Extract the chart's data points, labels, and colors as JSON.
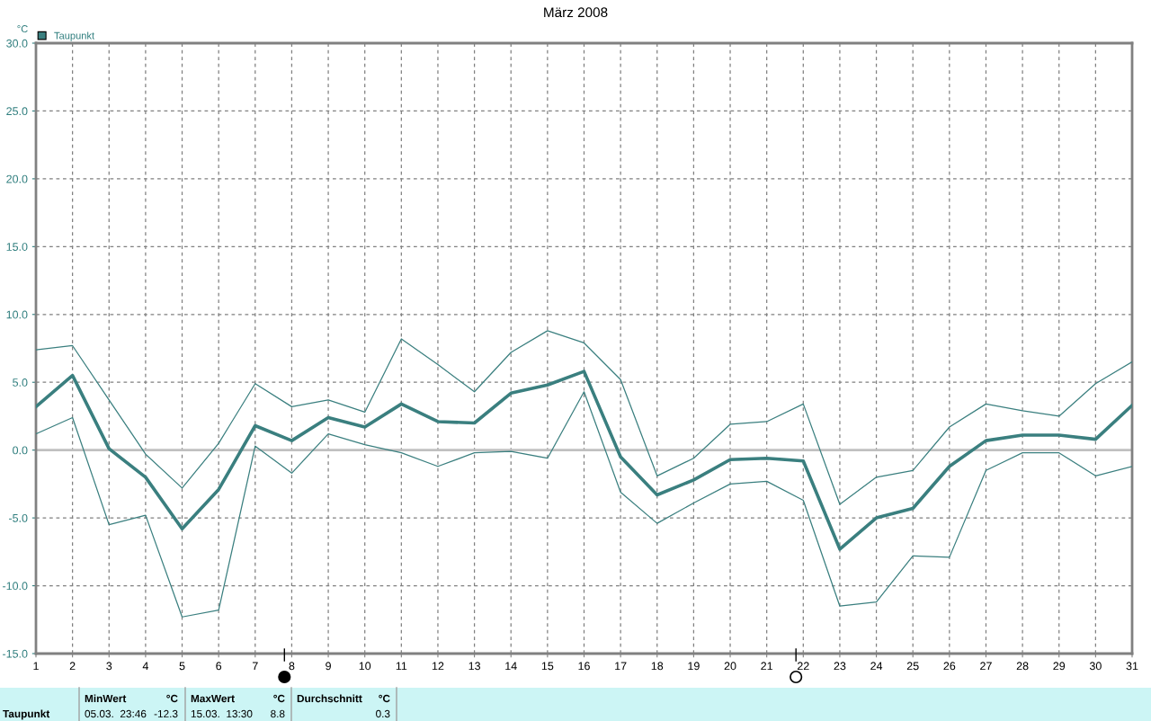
{
  "chart_data": {
    "type": "line",
    "title": "März 2008",
    "ylabel": "°C",
    "x": [
      1,
      2,
      3,
      4,
      5,
      6,
      7,
      8,
      9,
      10,
      11,
      12,
      13,
      14,
      15,
      16,
      17,
      18,
      19,
      20,
      21,
      22,
      23,
      24,
      25,
      26,
      27,
      28,
      29,
      30,
      31
    ],
    "series": [
      {
        "name": "Taupunkt",
        "color": "#3a7f7f",
        "values": [
          3.2,
          5.5,
          0.1,
          -2.0,
          -5.8,
          -2.9,
          1.8,
          0.7,
          2.4,
          1.7,
          3.4,
          2.1,
          2.0,
          4.2,
          4.8,
          5.8,
          -0.5,
          -3.3,
          -2.2,
          -0.7,
          -0.6,
          -0.8,
          -7.3,
          -5.0,
          -4.3,
          -1.2,
          0.7,
          1.1,
          1.1,
          0.8,
          3.3
        ]
      },
      {
        "color": "#3a7f7f",
        "values": [
          7.4,
          7.7,
          3.7,
          -0.3,
          -2.8,
          0.5,
          4.9,
          3.2,
          3.7,
          2.8,
          8.2,
          6.3,
          4.3,
          7.2,
          8.8,
          7.9,
          5.2,
          -1.9,
          -0.6,
          1.9,
          2.1,
          3.4,
          -4.0,
          -2.0,
          -1.5,
          1.7,
          3.4,
          2.9,
          2.5,
          4.9,
          6.5
        ]
      },
      {
        "color": "#3a7f7f",
        "values": [
          1.2,
          2.4,
          -5.5,
          -4.8,
          -12.3,
          -11.8,
          0.3,
          -1.7,
          1.2,
          0.4,
          -0.2,
          -1.2,
          -0.2,
          -0.1,
          -0.6,
          4.3,
          -3.1,
          -5.4,
          -3.9,
          -2.5,
          -2.3,
          -3.7,
          -11.5,
          -11.2,
          -7.8,
          -7.9,
          -1.5,
          -0.2,
          -0.2,
          -1.9,
          -1.2
        ]
      }
    ],
    "xlim": [
      1,
      31
    ],
    "xticks": [
      1,
      2,
      3,
      4,
      5,
      6,
      7,
      8,
      9,
      10,
      11,
      12,
      13,
      14,
      15,
      16,
      17,
      18,
      19,
      20,
      21,
      22,
      23,
      24,
      25,
      26,
      27,
      28,
      29,
      30,
      31
    ],
    "ylim": [
      -15,
      30
    ],
    "yticks": [
      {
        "value": -15,
        "label": "-15.0"
      },
      {
        "value": -10,
        "label": "-10.0"
      },
      {
        "value": -5,
        "label": "-5.0"
      },
      {
        "value": 0,
        "label": "0.0"
      },
      {
        "value": 5,
        "label": "5.0"
      },
      {
        "value": 10,
        "label": "10.0"
      },
      {
        "value": 15,
        "label": "15.0"
      },
      {
        "value": 20,
        "label": "20.0"
      },
      {
        "value": 25,
        "label": "25.0"
      },
      {
        "value": 30,
        "label": "30.0"
      }
    ],
    "ref_lines": [
      {
        "axis": "y",
        "value": 0,
        "color": "#c0c0c0",
        "line_style": "solid"
      }
    ],
    "grid": true,
    "legend": "top left",
    "marker": "none",
    "line_style": "solid",
    "annotations": [
      "Taupunkt",
      "MinWert",
      "°C",
      "05.03.  23:46",
      "-12.3",
      "MaxWert",
      "°C",
      "15.03.  13:30",
      "8.8",
      "Durchschnitt",
      "°C",
      "0.3"
    ]
  }
}
